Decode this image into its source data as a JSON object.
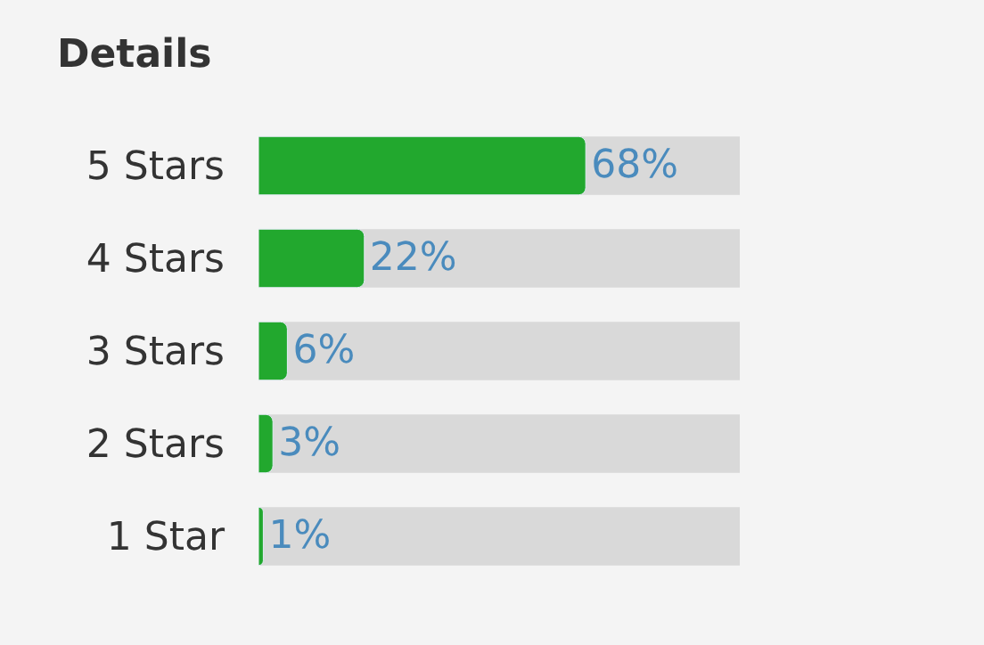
{
  "chart_data": {
    "type": "bar",
    "orientation": "horizontal",
    "title": "Details",
    "categories": [
      "5 Stars",
      "4 Stars",
      "3 Stars",
      "2 Stars",
      "1 Star"
    ],
    "values": [
      68,
      22,
      6,
      3,
      1
    ],
    "value_labels": [
      "68%",
      "22%",
      "6%",
      "3%",
      "1%"
    ],
    "color": "#22a82e",
    "xlim": [
      0,
      100
    ],
    "tick_labels": "y",
    "grid": false,
    "legend": false
  }
}
